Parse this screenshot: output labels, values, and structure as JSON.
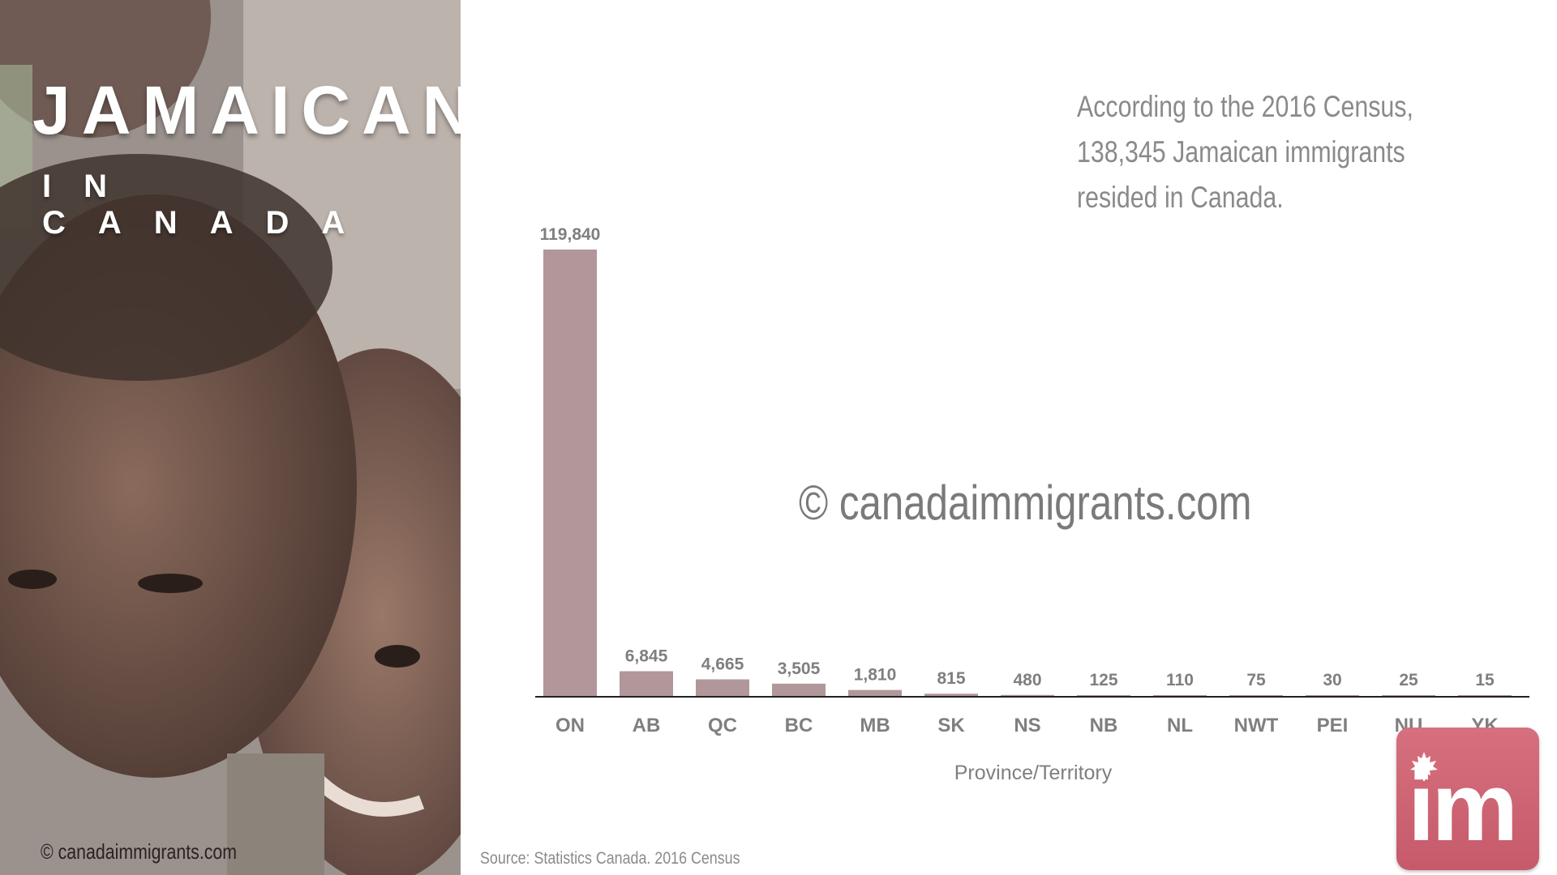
{
  "panel": {
    "title_main": "JAMAICANS",
    "title_sub": "IN CANADA",
    "photo_credit": "© canadaimmigrants.com"
  },
  "annotation": {
    "lines": [
      "According to the 2016 Census,",
      "138,345 Jamaican immigrants",
      "resided in Canada."
    ]
  },
  "watermark": "© canadaimmigrants.com",
  "source": "Source: Statistics Canada. 2016 Census",
  "logo": {
    "text": "im",
    "icon": "maple-leaf-icon"
  },
  "colors": {
    "bar": "#b1969a",
    "label": "#7f7f7f",
    "axis": "#222222",
    "logo": "#cf6575"
  },
  "chart_data": {
    "type": "bar",
    "categories": [
      "ON",
      "AB",
      "QC",
      "BC",
      "MB",
      "SK",
      "NS",
      "NB",
      "NL",
      "NWT",
      "PEI",
      "NU",
      "YK"
    ],
    "values": [
      119840,
      6845,
      4665,
      3505,
      1810,
      815,
      480,
      125,
      110,
      75,
      30,
      25,
      15
    ],
    "value_labels": [
      "119,840",
      "6,845",
      "4,665",
      "3,505",
      "1,810",
      "815",
      "480",
      "125",
      "110",
      "75",
      "30",
      "25",
      "15"
    ],
    "xlabel": "Province/Territory",
    "ylabel": "",
    "ylim": [
      0,
      119840
    ],
    "grid": false,
    "legend": "none"
  }
}
